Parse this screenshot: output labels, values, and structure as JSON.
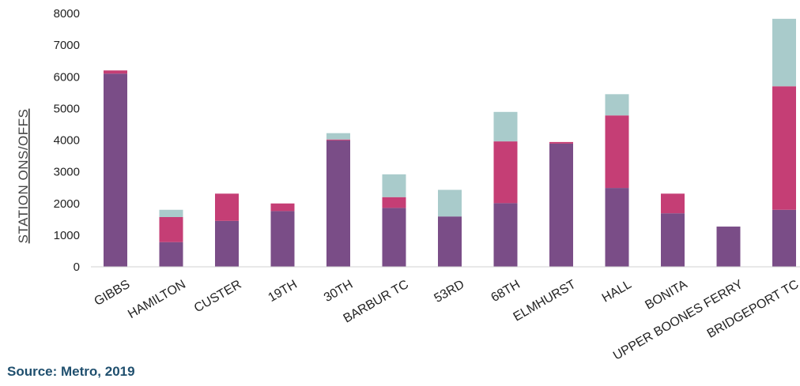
{
  "chart_data": {
    "type": "bar",
    "stacked": true,
    "categories": [
      "GIBBS",
      "HAMILTON",
      "CUSTER",
      "19TH",
      "30TH",
      "BARBUR TC",
      "53RD",
      "68TH",
      "ELMHURST",
      "HALL",
      "BONITA",
      "UPPER BOONES FERRY",
      "BRIDGEPORT TC"
    ],
    "series": [
      {
        "color": "#7a4d87",
        "values": [
          6100,
          780,
          1450,
          1760,
          3990,
          1860,
          1590,
          2010,
          3890,
          2490,
          1690,
          1270,
          1800
        ]
      },
      {
        "color": "#c53e75",
        "values": [
          100,
          790,
          860,
          240,
          30,
          340,
          0,
          1950,
          50,
          2290,
          620,
          0,
          3900
        ]
      },
      {
        "color": "#a9cbcb",
        "values": [
          0,
          230,
          0,
          0,
          200,
          720,
          840,
          930,
          0,
          670,
          0,
          0,
          2130
        ]
      }
    ],
    "ylabel": "STATION ONS/OFFS",
    "ylim": [
      0,
      8000
    ],
    "yticks": [
      0,
      1000,
      2000,
      3000,
      4000,
      5000,
      6000,
      7000,
      8000
    ],
    "grid": false,
    "legend": "none"
  },
  "source": "Source: Metro, 2019"
}
